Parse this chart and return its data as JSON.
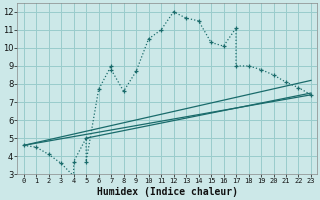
{
  "xlabel": "Humidex (Indice chaleur)",
  "ylabel": "",
  "bg_color": "#cce8e8",
  "grid_color": "#99cccc",
  "line_color": "#1a6b6b",
  "xlim": [
    -0.5,
    23.5
  ],
  "ylim": [
    3,
    12.5
  ],
  "xticks": [
    0,
    1,
    2,
    3,
    4,
    5,
    6,
    7,
    8,
    9,
    10,
    11,
    12,
    13,
    14,
    15,
    16,
    17,
    18,
    19,
    20,
    21,
    22,
    23
  ],
  "yticks": [
    3,
    4,
    5,
    6,
    7,
    8,
    9,
    10,
    11,
    12
  ],
  "main_x": [
    0,
    1,
    2,
    3,
    4,
    4,
    5,
    5,
    6,
    7,
    7,
    8,
    9,
    10,
    11,
    12,
    13,
    14,
    15,
    16,
    17,
    17,
    18,
    19,
    20,
    21,
    22,
    23
  ],
  "main_y": [
    4.6,
    4.5,
    4.1,
    3.6,
    2.9,
    3.7,
    5.0,
    3.7,
    7.7,
    9.0,
    8.8,
    7.6,
    8.7,
    10.5,
    11.0,
    12.0,
    11.65,
    11.5,
    10.3,
    10.1,
    11.1,
    9.0,
    9.0,
    8.8,
    8.5,
    8.1,
    7.8,
    7.4
  ],
  "line1_x": [
    0,
    23
  ],
  "line1_y": [
    4.6,
    7.4
  ],
  "line2_x": [
    0,
    23
  ],
  "line2_y": [
    4.6,
    8.2
  ],
  "line3_x": [
    5,
    23
  ],
  "line3_y": [
    5.0,
    7.5
  ]
}
